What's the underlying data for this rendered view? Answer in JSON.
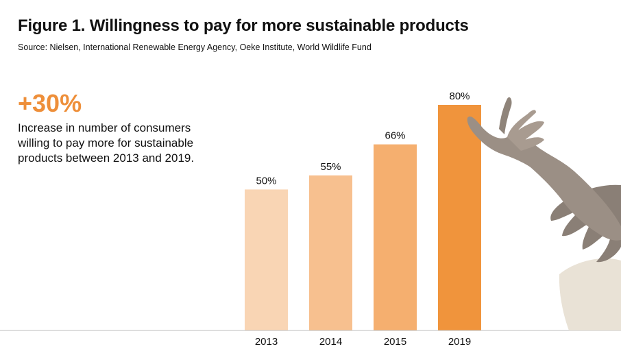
{
  "header": {
    "title": "Figure 1. Willingness to pay for more sustainable products",
    "source": "Source: Nielsen, International Renewable Energy Agency, Oeke Institute, World Wildlife Fund"
  },
  "highlight": {
    "value": "+30%",
    "description": "Increase in number of consumers willing to pay more for sustainable products between 2013 and 2019.",
    "color": "#ee8f3a"
  },
  "illustration": {
    "icon": "reaching-hands-illustration"
  },
  "chart_data": {
    "type": "bar",
    "categories": [
      "2013",
      "2014",
      "2015",
      "2019"
    ],
    "values": [
      50,
      55,
      66,
      80
    ],
    "data_labels": [
      "50%",
      "55%",
      "66%",
      "80%"
    ],
    "colors": [
      "#f9d5b4",
      "#f7c08f",
      "#f5af6f",
      "#f0943c"
    ],
    "ylim": [
      0,
      80
    ],
    "grid": false,
    "legend": "none",
    "title": "",
    "xlabel": "",
    "ylabel": ""
  }
}
